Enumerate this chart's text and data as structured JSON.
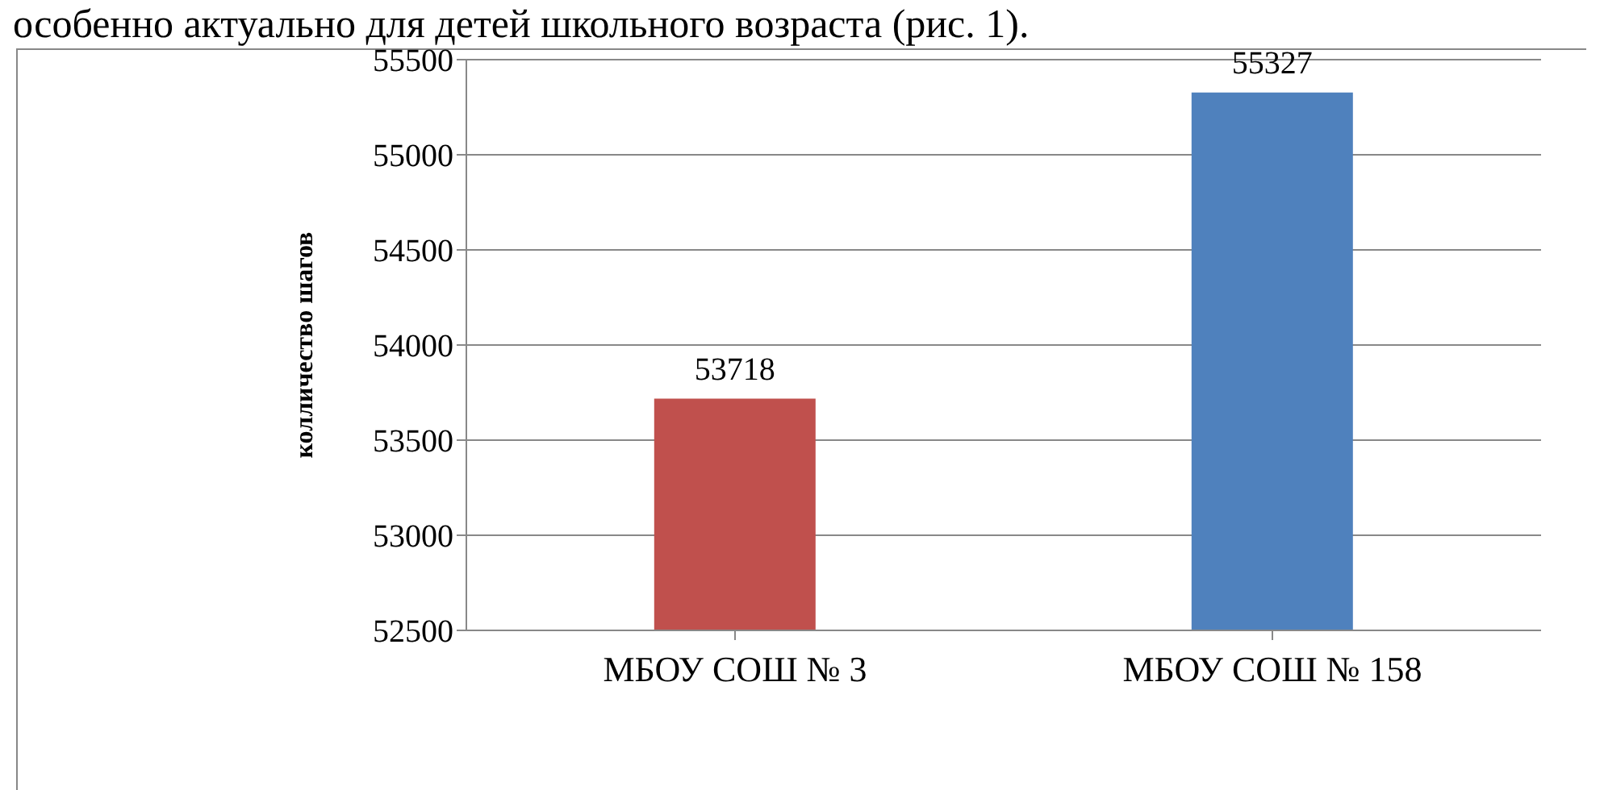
{
  "chart_data": {
    "type": "bar",
    "ylabel": "колличество шагов",
    "annotations": [
      "особенно актуально для детей школьного возраста (рис. 1)."
    ],
    "categories": [
      "МБОУ СОШ № 3",
      "МБОУ СОШ № 158"
    ],
    "values": [
      53718,
      55327
    ],
    "colors": [
      "#c0504d",
      "#4f81bd"
    ],
    "ylim": [
      52500,
      55500
    ],
    "yticks": [
      52500,
      53000,
      53500,
      54000,
      54500,
      55000,
      55500
    ],
    "grid": "y",
    "data_labels": true,
    "legend": false
  }
}
